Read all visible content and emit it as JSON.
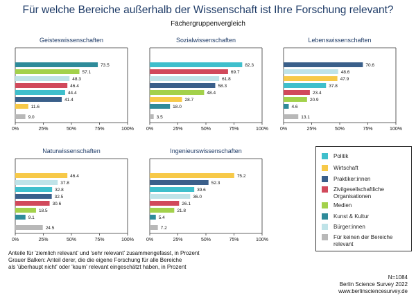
{
  "title": "Für welche Bereiche außerhalb der Wissenschaft ist Ihre Forschung relevant?",
  "subtitle": "Fächergruppenvergleich",
  "legend": [
    {
      "label": "Politik",
      "color": "#3fbfcc"
    },
    {
      "label": "Wirtschaft",
      "color": "#f7c948"
    },
    {
      "label": "Praktiker:innen",
      "color": "#3a5f8a"
    },
    {
      "label": "Zivilgesellschaftliche Organisationen",
      "color": "#d1495b"
    },
    {
      "label": "Medien",
      "color": "#a3d14b"
    },
    {
      "label": "Kunst & Kultur",
      "color": "#2e8b9a"
    },
    {
      "label": "Bürger:innen",
      "color": "#bfe3e8"
    },
    {
      "label": "Für keinen der Bereiche relevant",
      "color": "#b8b8b8"
    }
  ],
  "chart_data": [
    {
      "type": "bar",
      "title": "Geisteswissenschaften",
      "values": [
        73.5,
        57.1,
        48.3,
        46.4,
        44.4,
        41.4,
        11.6,
        9.0
      ],
      "labels": [
        "73.5",
        "57.1",
        "48.3",
        "46.4",
        "44.4",
        "41.4",
        "11.6",
        "9.0"
      ],
      "colors": [
        "#2e8b9a",
        "#a3d14b",
        "#bfe3e8",
        "#d1495b",
        "#3fbfcc",
        "#3a5f8a",
        "#f7c948",
        "#b8b8b8"
      ],
      "xlim": [
        0,
        100
      ],
      "ticks": [
        "0%",
        "25%",
        "50%",
        "75%",
        "100%"
      ]
    },
    {
      "type": "bar",
      "title": "Sozialwissenschaften",
      "values": [
        82.3,
        69.7,
        61.8,
        58.3,
        48.4,
        28.7,
        18.0,
        3.5
      ],
      "labels": [
        "82.3",
        "69.7",
        "61.8",
        "58.3",
        "48.4",
        "28.7",
        "18.0",
        "3.5"
      ],
      "colors": [
        "#3fbfcc",
        "#d1495b",
        "#bfe3e8",
        "#3a5f8a",
        "#a3d14b",
        "#f7c948",
        "#2e8b9a",
        "#b8b8b8"
      ],
      "xlim": [
        0,
        100
      ],
      "ticks": [
        "0%",
        "25%",
        "50%",
        "75%",
        "100%"
      ]
    },
    {
      "type": "bar",
      "title": "Lebenswissenschaften",
      "values": [
        70.6,
        48.6,
        47.9,
        37.8,
        23.4,
        20.9,
        4.6,
        13.1
      ],
      "labels": [
        "70.6",
        "48.6",
        "47.9",
        "37.8",
        "23.4",
        "20.9",
        "4.6",
        "13.1"
      ],
      "colors": [
        "#3a5f8a",
        "#bfe3e8",
        "#f7c948",
        "#3fbfcc",
        "#d1495b",
        "#a3d14b",
        "#2e8b9a",
        "#b8b8b8"
      ],
      "xlim": [
        0,
        100
      ],
      "ticks": [
        "0%",
        "25%",
        "50%",
        "75%",
        "100%"
      ]
    },
    {
      "type": "bar",
      "title": "Naturwissenschaften",
      "values": [
        46.4,
        37.8,
        32.8,
        32.5,
        30.6,
        18.5,
        9.1,
        24.5
      ],
      "labels": [
        "46.4",
        "37.8",
        "32.8",
        "32.5",
        "30.6",
        "18.5",
        "9.1",
        "24.5"
      ],
      "colors": [
        "#f7c948",
        "#bfe3e8",
        "#3fbfcc",
        "#3a5f8a",
        "#d1495b",
        "#a3d14b",
        "#2e8b9a",
        "#b8b8b8"
      ],
      "xlim": [
        0,
        100
      ],
      "ticks": [
        "0%",
        "25%",
        "50%",
        "75%",
        "100%"
      ]
    },
    {
      "type": "bar",
      "title": "Ingenieurswissenschaften",
      "values": [
        75.2,
        52.3,
        39.6,
        36.0,
        26.1,
        21.8,
        5.4,
        7.2
      ],
      "labels": [
        "75.2",
        "52.3",
        "39.6",
        "36.0",
        "26.1",
        "21.8",
        "5.4",
        "7.2"
      ],
      "colors": [
        "#f7c948",
        "#3a5f8a",
        "#3fbfcc",
        "#bfe3e8",
        "#d1495b",
        "#a3d14b",
        "#2e8b9a",
        "#b8b8b8"
      ],
      "xlim": [
        0,
        100
      ],
      "ticks": [
        "0%",
        "25%",
        "50%",
        "75%",
        "100%"
      ]
    }
  ],
  "notes": [
    "Anteile für 'ziemlich relevant' und 'sehr relevant' zusammengefasst, in Prozent",
    "Grauer Balken: Anteil derer, die die eigene Forschung für alle Bereiche",
    "als 'überhaupt nicht' oder 'kaum' relevant eingeschätzt haben, in Prozent"
  ],
  "footer": [
    "N=1084",
    "Berlin Science Survey 2022",
    "www.berlinsciencesurvey.de"
  ]
}
